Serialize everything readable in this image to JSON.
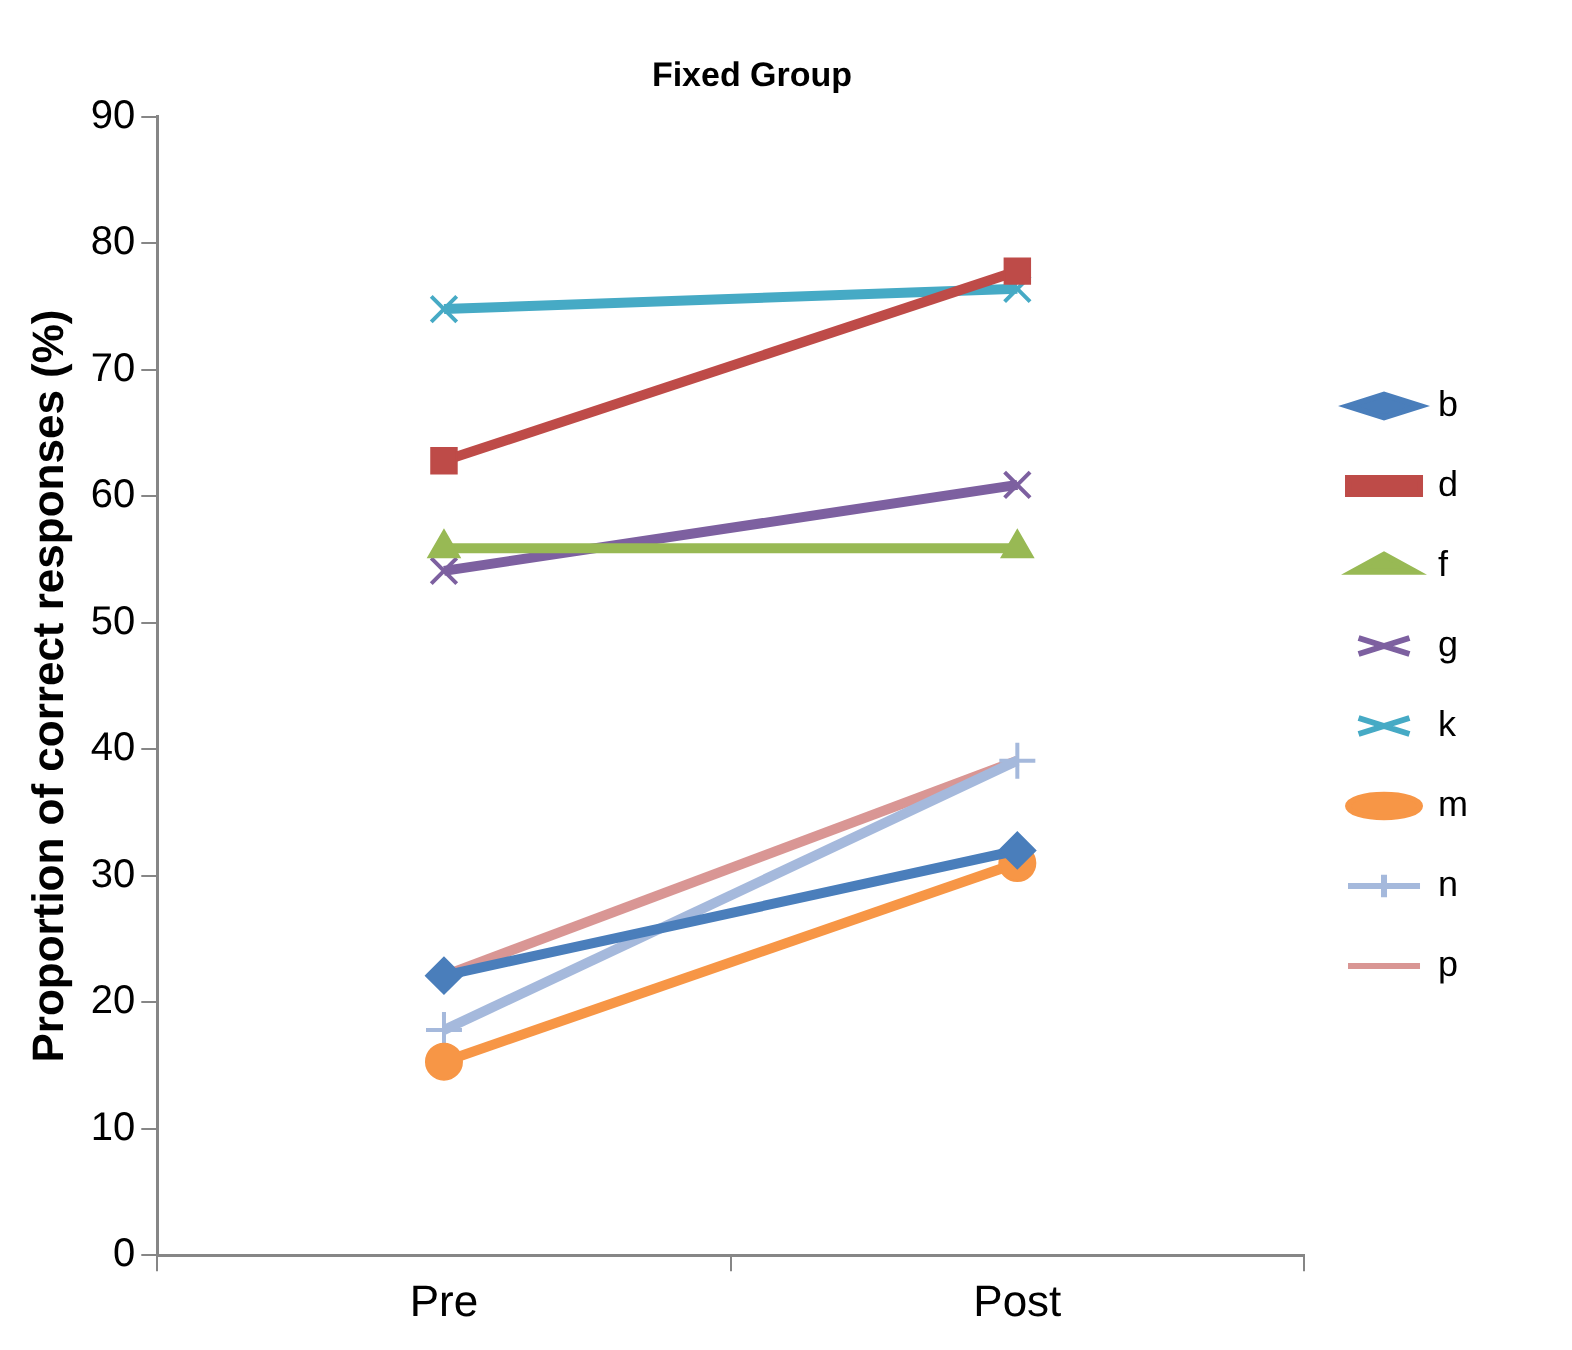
{
  "chart_data": {
    "type": "line",
    "title": "Fixed Group",
    "ylabel": "Proportion of correct responses (%)",
    "categories": [
      "Pre",
      "Post"
    ],
    "ylim": [
      0,
      90
    ],
    "yticks": [
      0,
      10,
      20,
      30,
      40,
      50,
      60,
      70,
      80,
      90
    ],
    "grid": false,
    "legend": "right",
    "line_style": "solid",
    "series": [
      {
        "name": "b",
        "color": "#4a7ebb",
        "marker": "diamond",
        "values": [
          22.1,
          32
        ]
      },
      {
        "name": "d",
        "color": "#be4b48",
        "marker": "square",
        "values": [
          62.8,
          77.8
        ]
      },
      {
        "name": "f",
        "color": "#98b954",
        "marker": "triangle",
        "values": [
          55.9,
          55.9
        ]
      },
      {
        "name": "g",
        "color": "#7d60a0",
        "marker": "cross",
        "values": [
          54.1,
          60.9
        ]
      },
      {
        "name": "k",
        "color": "#46aac5",
        "marker": "cross",
        "values": [
          74.8,
          76.4
        ]
      },
      {
        "name": "m",
        "color": "#f79646",
        "marker": "circle",
        "values": [
          15.3,
          31
        ]
      },
      {
        "name": "n",
        "color": "#a5b9dc",
        "marker": "plus",
        "values": [
          17.8,
          39.1
        ]
      },
      {
        "name": "p",
        "color": "#d99694",
        "marker": "none",
        "values": [
          22.1,
          39.1
        ]
      }
    ]
  }
}
